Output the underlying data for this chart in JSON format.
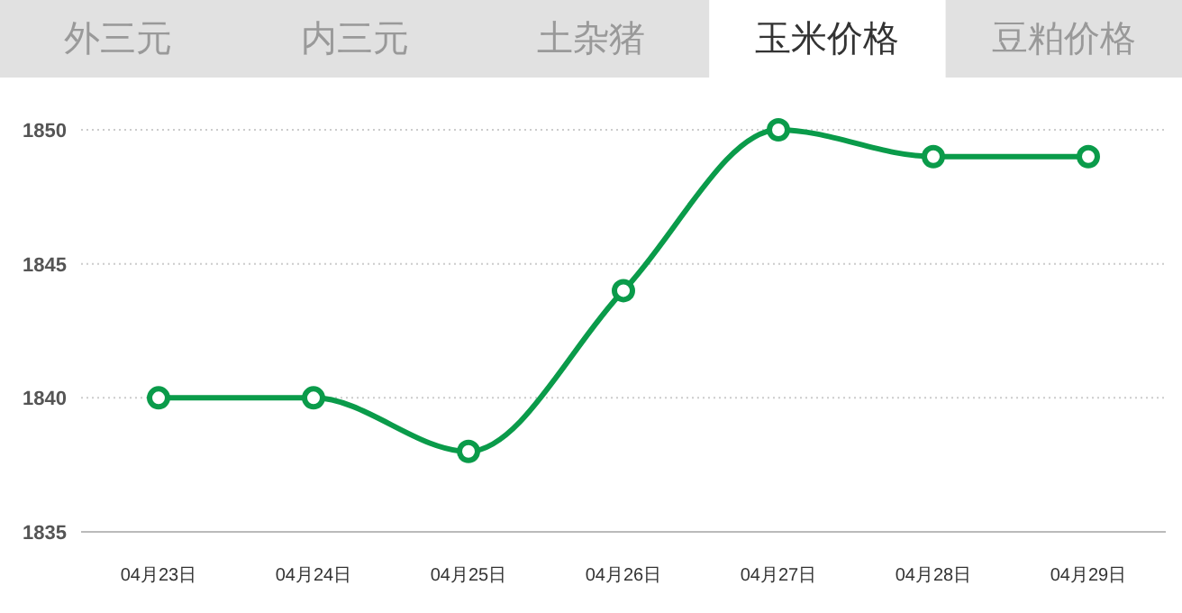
{
  "chart_data": {
    "type": "line",
    "title": "玉米价格",
    "annotations": [
      "外三元",
      "内三元",
      "土杂猪",
      "豆粕价格"
    ],
    "categories": [
      "04月23日",
      "04月24日",
      "04月25日",
      "04月26日",
      "04月27日",
      "04月28日",
      "04月29日"
    ],
    "series": [
      {
        "color": "#0a9b4a",
        "values": [
          1840,
          1840,
          1838,
          1844,
          1850,
          1849,
          1849
        ]
      }
    ],
    "ylim": [
      1835,
      1850
    ],
    "yticks": [
      1835,
      1840,
      1845,
      1850
    ],
    "grid": "y",
    "marker": "circle"
  }
}
